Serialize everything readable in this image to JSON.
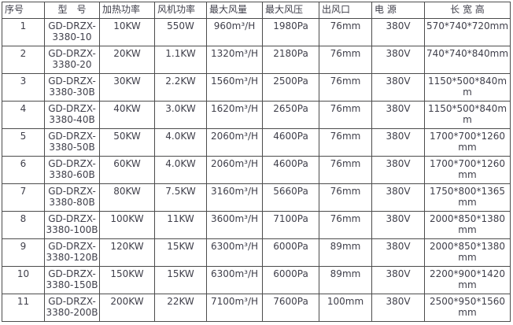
{
  "table": {
    "headers": [
      "序号",
      "型　号",
      "加热功率",
      "风机功率",
      "最大风量",
      "最大风压",
      "出风口",
      "电 源",
      "长 宽 高"
    ],
    "rows": [
      [
        "1",
        "GD-DRZX-3380-10",
        "10KW",
        "550W",
        "960m³/H",
        "1980Pa",
        "76mm",
        "380V",
        "570*740*720mm"
      ],
      [
        "2",
        "GD-DRZX-3380-20",
        "20KW",
        "1.1KW",
        "1320m³/H",
        "2180Pa",
        "76mm",
        "380V",
        "740*740*840mm"
      ],
      [
        "3",
        "GD-DRZX-3380-30B",
        "30KW",
        "2.2KW",
        "1560m³/H",
        "2500Pa",
        "76mm",
        "380V",
        "1150*500*840mm"
      ],
      [
        "4",
        "GD-DRZX-3380-40B",
        "40KW",
        "3.0KW",
        "1620m³/H",
        "2650Pa",
        "76mm",
        "380V",
        "1150*500*840mm"
      ],
      [
        "5",
        "GD-DRZX-3380-50B",
        "50KW",
        "4.0KW",
        "2060m³/H",
        "4600Pa",
        "76mm",
        "380V",
        "1700*700*1260mm"
      ],
      [
        "6",
        "GD-DRZX-3380-60B",
        "60KW",
        "4.0KW",
        "2060m³/H",
        "4600Pa",
        "76mm",
        "380V",
        "1700*700*1260mm"
      ],
      [
        "7",
        "GD-DRZX-3380-80B",
        "80KW",
        "7.5KW",
        "3160m³/H",
        "5660Pa",
        "76mm",
        "380V",
        "1750*800*1365mm"
      ],
      [
        "8",
        "GD-DRZX-3380-100B",
        "100KW",
        "11KW",
        "3600m³/H",
        "7100Pa",
        "76mm",
        "380V",
        "2000*850*1380mm"
      ],
      [
        "9",
        "GD-DRZX-3380-120B",
        "120KW",
        "15KW",
        "6300m³/H",
        "6000Pa",
        "89mm",
        "380V",
        "2000*850*1380mm"
      ],
      [
        "10",
        "GD-DRZX-3380-150B",
        "150KW",
        "15KW",
        "6300m³/H",
        "6000Pa",
        "89mm",
        "380V",
        "2200*900*1420mm"
      ],
      [
        "11",
        "GD-DRZX-3380-200B",
        "200KW",
        "22KW",
        "7100m³/H",
        "7600Pa",
        "100mm",
        "380V",
        "2500*950*1560mm"
      ]
    ],
    "colors": {
      "text": "#3f3f4a",
      "border": "#4c4c4c",
      "background": "#ffffff"
    }
  }
}
